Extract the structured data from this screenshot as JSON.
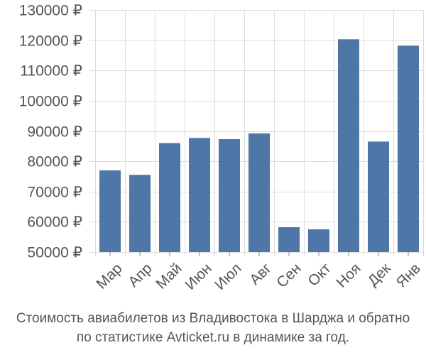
{
  "chart_data": {
    "type": "bar",
    "categories": [
      "Мар",
      "Апр",
      "Май",
      "Июн",
      "Июл",
      "Авг",
      "Сен",
      "Окт",
      "Ноя",
      "Дек",
      "Янв"
    ],
    "values": [
      77000,
      75500,
      86000,
      87700,
      87300,
      89200,
      58200,
      57500,
      120300,
      86500,
      118200
    ],
    "yticks": [
      "130000 ₽",
      "120000 ₽",
      "110000 ₽",
      "100000 ₽",
      "90000 ₽",
      "80000 ₽",
      "70000 ₽",
      "60000 ₽",
      "50000 ₽"
    ],
    "ytick_values": [
      130000,
      120000,
      110000,
      100000,
      90000,
      80000,
      70000,
      60000,
      50000
    ],
    "ylim": [
      50000,
      130000
    ],
    "grid": true,
    "bar_color": "#4e76a7",
    "caption_line1": "Стоимость авиабилетов из Владивостока в Шарджа и обратно",
    "caption_line2": "по статистике Avticket.ru в динамике за год."
  }
}
